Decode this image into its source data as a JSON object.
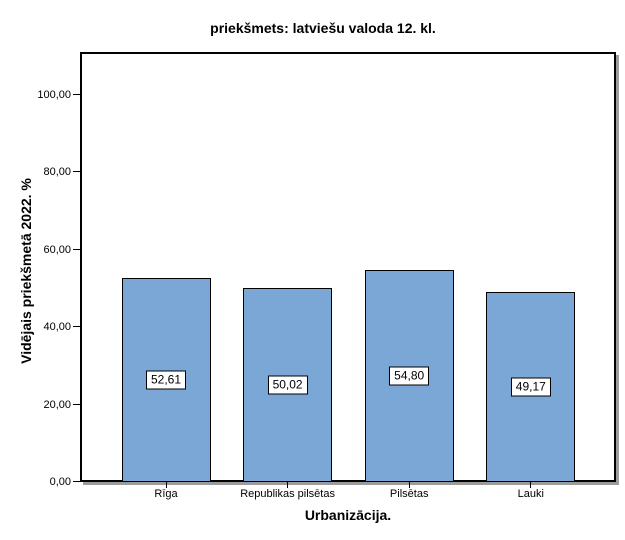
{
  "chart_data": {
    "type": "bar",
    "title": "priekšmets: latviešu valoda 12. kl.",
    "xlabel": "Urbanizācija.",
    "ylabel": "Vidējais priekšmetā 2022. %",
    "categories": [
      "Rīga",
      "Republikas pilsētas",
      "Pilsētas",
      "Lauki"
    ],
    "values": [
      52.61,
      50.02,
      54.8,
      49.17
    ],
    "value_labels": [
      "52,61",
      "50,02",
      "54,80",
      "49,17"
    ],
    "y_ticks": [
      0,
      20,
      40,
      60,
      80,
      100
    ],
    "y_tick_labels": [
      "0,00",
      "20,00",
      "40,00",
      "60,00",
      "80,00",
      "100,00"
    ],
    "ylim": [
      0,
      111.1
    ],
    "grid": false,
    "legend": false,
    "bar_fill_color": "#7AA7D5",
    "bar_border_color": "#000000",
    "frame_color": "#000000"
  }
}
